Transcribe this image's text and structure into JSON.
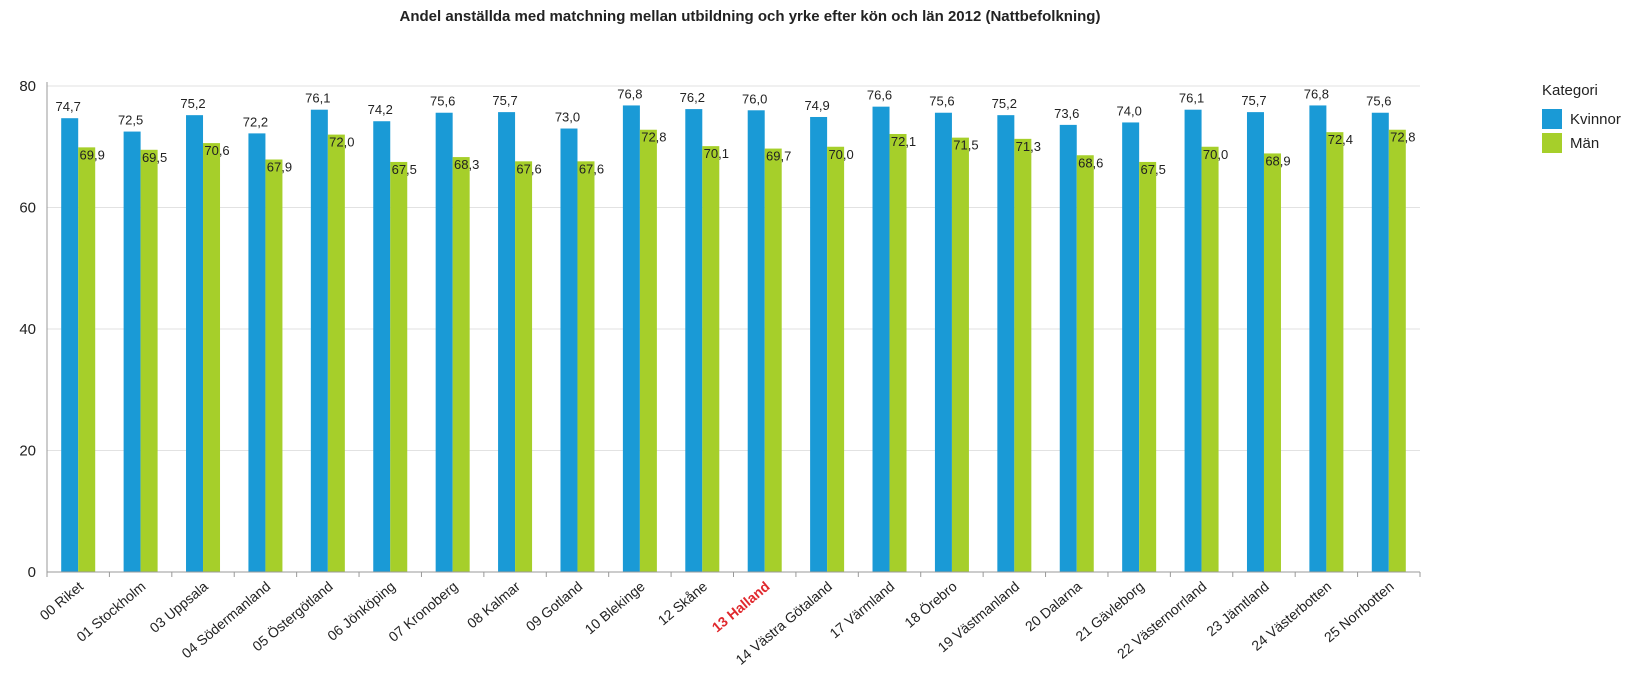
{
  "chart_data": {
    "type": "bar",
    "title": "Andel anställda med matchning mellan utbildning och yrke efter kön och län 2012 (Nattbefolkning)",
    "categories": [
      "00 Riket",
      "01 Stockholm",
      "03 Uppsala",
      "04 Södermanland",
      "05 Östergötland",
      "06 Jönköping",
      "07 Kronoberg",
      "08 Kalmar",
      "09 Gotland",
      "10 Blekinge",
      "12 Skåne",
      "13 Halland",
      "14 Västra Götaland",
      "17 Värmland",
      "18 Örebro",
      "19 Västmanland",
      "20 Dalarna",
      "21 Gävleborg",
      "22 Västernorrland",
      "23 Jämtland",
      "24 Västerbotten",
      "25 Norrbotten"
    ],
    "highlight_category": "13 Halland",
    "highlight_color": "#e0282d",
    "series": [
      {
        "name": "Kvinnor",
        "color": "#1a9ad6",
        "values": [
          74.7,
          72.5,
          75.2,
          72.2,
          76.1,
          74.2,
          75.6,
          75.7,
          73.0,
          76.8,
          76.2,
          76.0,
          74.9,
          76.6,
          75.6,
          75.2,
          73.6,
          74.0,
          76.1,
          75.7,
          76.8,
          75.6
        ]
      },
      {
        "name": "Män",
        "color": "#a6cf2a",
        "values": [
          69.9,
          69.5,
          70.6,
          67.9,
          72.0,
          67.5,
          68.3,
          67.6,
          67.6,
          72.8,
          70.1,
          69.7,
          70.0,
          72.1,
          71.5,
          71.3,
          68.6,
          67.5,
          70.0,
          68.9,
          72.4,
          72.8
        ]
      }
    ],
    "data_labels": {
      "Kvinnor": [
        "74,7",
        "72,5",
        "75,2",
        "72,2",
        "76,1",
        "74,2",
        "75,6",
        "75,7",
        "73,0",
        "76,8",
        "76,2",
        "76,0",
        "74,9",
        "76,6",
        "75,6",
        "75,2",
        "73,6",
        "74,0",
        "76,1",
        "75,7",
        "76,8",
        "75,6"
      ],
      "Män": [
        "69,9",
        "69,5",
        "70,6",
        "67,9",
        "72,0",
        "67,5",
        "68,3",
        "67,6",
        "67,6",
        "72,8",
        "70,1",
        "69,7",
        "70,0",
        "72,1",
        "71,5",
        "71,3",
        "68,6",
        "67,5",
        "70,0",
        "68,9",
        "72,4",
        "72,8"
      ]
    },
    "yticks": [
      "0",
      "20",
      "40",
      "60",
      "80"
    ],
    "ylim": [
      0,
      80
    ],
    "grid": true,
    "legend": {
      "title": "Kategori",
      "position": "right"
    }
  }
}
